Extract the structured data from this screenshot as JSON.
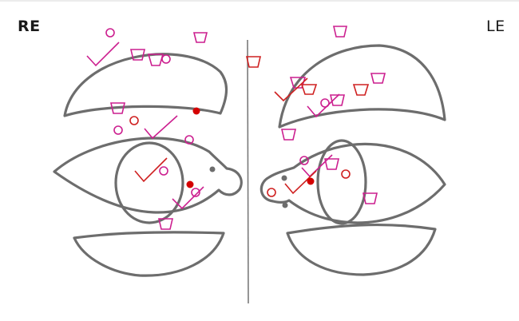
{
  "labels": {
    "right_eye": "RE",
    "left_eye": "LE"
  },
  "colors": {
    "outline": "#6d6d6d",
    "midline": "#7a7a7a",
    "magenta": "#cc1f8f",
    "red": "#cf2020",
    "red_dot": "#d40000"
  }
}
